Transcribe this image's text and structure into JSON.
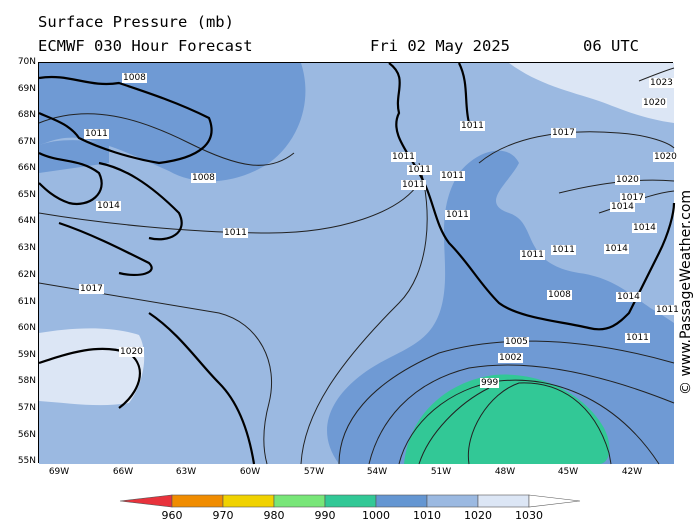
{
  "header": {
    "title": "Surface Pressure (mb)",
    "model": "ECMWF 030 Hour Forecast",
    "date": "Fri 02 May 2025",
    "time": "06 UTC"
  },
  "map": {
    "lat_labels": [
      "70N",
      "69N",
      "68N",
      "67N",
      "66N",
      "65N",
      "64N",
      "63N",
      "62N",
      "61N",
      "60N",
      "59N",
      "58N",
      "57N",
      "56N",
      "55N"
    ],
    "lon_labels": [
      "69W",
      "66W",
      "63W",
      "60W",
      "57W",
      "54W",
      "51W",
      "48W",
      "45W",
      "42W"
    ],
    "isobar_labels": [
      "1008",
      "1011",
      "1008",
      "1014",
      "1011",
      "1017",
      "1020",
      "1011",
      "1011",
      "1011",
      "1011",
      "1011",
      "1011",
      "1017",
      "1020",
      "1023",
      "1020",
      "1020",
      "1017",
      "1014",
      "1014",
      "1014",
      "1011",
      "1008",
      "1014",
      "1011",
      "1011",
      "1005",
      "1002",
      "999",
      "1011"
    ],
    "copyright": "© www.PassageWeather.com"
  },
  "colorbar": {
    "labels": [
      "960",
      "970",
      "980",
      "990",
      "1000",
      "1010",
      "1020",
      "1030"
    ],
    "colors": [
      "#e8323c",
      "#f08c00",
      "#f0d200",
      "#78e678",
      "#32c896",
      "#6496d2",
      "#9bb9e1",
      "#dce6f5",
      "#ffffff"
    ]
  }
}
